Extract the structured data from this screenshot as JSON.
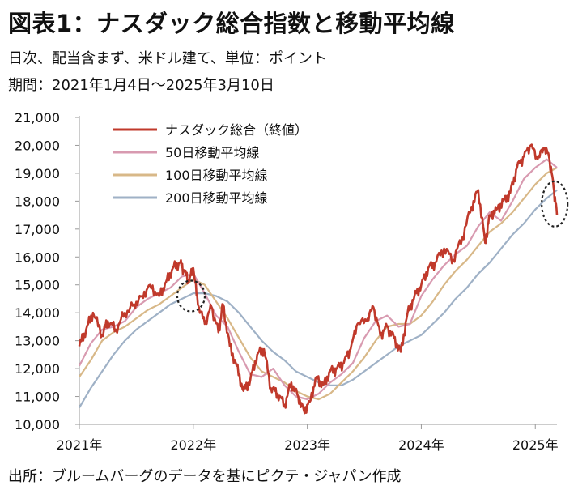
{
  "header": {
    "title": "図表1：ナスダック総合指数と移動平均線",
    "subtitle": "日次、配当含まず、米ドル建て、単位：ポイント",
    "period": "期間：2021年1月4日～2025年3月10日"
  },
  "footer": {
    "source": "出所：ブルームバーグのデータを基にピクテ・ジャパン作成"
  },
  "chart_data": {
    "type": "line",
    "title": "ナスダック総合指数と移動平均線",
    "xlabel": "",
    "ylabel": "ポイント",
    "ylim": [
      10000,
      21000
    ],
    "xlim": [
      2021.0,
      2025.19
    ],
    "y_ticks": [
      10000,
      11000,
      12000,
      13000,
      14000,
      15000,
      16000,
      17000,
      18000,
      19000,
      20000,
      21000
    ],
    "y_tick_labels": [
      "10,000",
      "11,000",
      "12,000",
      "13,000",
      "14,000",
      "15,000",
      "16,000",
      "17,000",
      "18,000",
      "19,000",
      "20,000",
      "21,000"
    ],
    "x_ticks": [
      2021,
      2022,
      2023,
      2024,
      2025
    ],
    "x_tick_labels": [
      "2021年",
      "2022年",
      "2023年",
      "2024年",
      "2025年"
    ],
    "legend_position": "top-left",
    "grid": false,
    "series": [
      {
        "name": "ナスダック総合（終値）",
        "color": "#c0392b",
        "x": [
          2021.0,
          2021.06,
          2021.12,
          2021.2,
          2021.25,
          2021.32,
          2021.4,
          2021.48,
          2021.55,
          2021.62,
          2021.7,
          2021.76,
          2021.82,
          2021.88,
          2021.92,
          2021.96,
          2022.0,
          2022.04,
          2022.1,
          2022.16,
          2022.22,
          2022.26,
          2022.32,
          2022.38,
          2022.44,
          2022.5,
          2022.56,
          2022.62,
          2022.68,
          2022.74,
          2022.8,
          2022.86,
          2022.92,
          2022.97,
          2023.02,
          2023.08,
          2023.14,
          2023.2,
          2023.26,
          2023.32,
          2023.38,
          2023.44,
          2023.52,
          2023.58,
          2023.64,
          2023.7,
          2023.76,
          2023.82,
          2023.88,
          2023.94,
          2024.0,
          2024.06,
          2024.12,
          2024.2,
          2024.28,
          2024.36,
          2024.44,
          2024.5,
          2024.56,
          2024.6,
          2024.66,
          2024.72,
          2024.78,
          2024.84,
          2024.9,
          2024.96,
          2025.02,
          2025.08,
          2025.12,
          2025.16,
          2025.19
        ],
        "values": [
          12800,
          13400,
          14000,
          13200,
          13700,
          13400,
          14000,
          14300,
          14600,
          15000,
          14600,
          15100,
          15600,
          15800,
          15500,
          15100,
          15600,
          14300,
          13600,
          14200,
          13300,
          14300,
          12800,
          12100,
          11200,
          11600,
          12500,
          12700,
          11300,
          11100,
          10700,
          11500,
          11000,
          10500,
          10800,
          11700,
          11400,
          11900,
          12000,
          12200,
          12700,
          13600,
          13700,
          14200,
          13200,
          13500,
          13100,
          12600,
          14000,
          14600,
          15000,
          15600,
          15800,
          16300,
          15900,
          16700,
          17800,
          18400,
          16500,
          17500,
          17700,
          18000,
          18300,
          19200,
          19600,
          20000,
          19500,
          19900,
          19600,
          18500,
          17500
        ]
      },
      {
        "name": "50日移動平均線",
        "color": "#d89ab0",
        "x": [
          2021.0,
          2021.1,
          2021.2,
          2021.3,
          2021.4,
          2021.5,
          2021.6,
          2021.7,
          2021.8,
          2021.9,
          2022.0,
          2022.1,
          2022.2,
          2022.3,
          2022.4,
          2022.5,
          2022.6,
          2022.7,
          2022.8,
          2022.9,
          2023.0,
          2023.1,
          2023.2,
          2023.3,
          2023.4,
          2023.5,
          2023.6,
          2023.7,
          2023.8,
          2023.9,
          2024.0,
          2024.1,
          2024.2,
          2024.3,
          2024.4,
          2024.5,
          2024.6,
          2024.7,
          2024.8,
          2024.9,
          2025.0,
          2025.1,
          2025.19
        ],
        "values": [
          12100,
          12900,
          13400,
          13500,
          13700,
          14200,
          14500,
          14700,
          14900,
          15300,
          15400,
          14700,
          13900,
          13500,
          12600,
          11800,
          11700,
          12000,
          11400,
          11000,
          10900,
          11100,
          11500,
          11800,
          12200,
          13100,
          13700,
          13900,
          13500,
          13600,
          14600,
          15200,
          15700,
          16100,
          16400,
          17100,
          17600,
          17300,
          18000,
          18800,
          19200,
          19500,
          19200
        ]
      },
      {
        "name": "100日移動平均線",
        "color": "#d8b888",
        "x": [
          2021.0,
          2021.1,
          2021.2,
          2021.3,
          2021.4,
          2021.5,
          2021.6,
          2021.7,
          2021.8,
          2021.9,
          2022.0,
          2022.1,
          2022.2,
          2022.3,
          2022.4,
          2022.5,
          2022.6,
          2022.7,
          2022.8,
          2022.9,
          2023.0,
          2023.1,
          2023.2,
          2023.3,
          2023.4,
          2023.5,
          2023.6,
          2023.7,
          2023.8,
          2023.9,
          2024.0,
          2024.1,
          2024.2,
          2024.3,
          2024.4,
          2024.5,
          2024.6,
          2024.7,
          2024.8,
          2024.9,
          2025.0,
          2025.1,
          2025.19
        ],
        "values": [
          11700,
          12300,
          13000,
          13300,
          13500,
          13800,
          14100,
          14300,
          14600,
          14900,
          15200,
          15000,
          14400,
          13800,
          13100,
          12400,
          11900,
          11700,
          11500,
          11200,
          11000,
          10900,
          11100,
          11500,
          11900,
          12400,
          13000,
          13500,
          13600,
          13600,
          13900,
          14400,
          15000,
          15500,
          15900,
          16400,
          16900,
          17200,
          17600,
          18100,
          18600,
          19000,
          19200
        ]
      },
      {
        "name": "200日移動平均線",
        "color": "#9fb1c6",
        "x": [
          2021.0,
          2021.1,
          2021.2,
          2021.3,
          2021.4,
          2021.5,
          2021.6,
          2021.7,
          2021.8,
          2021.9,
          2022.0,
          2022.1,
          2022.2,
          2022.3,
          2022.4,
          2022.5,
          2022.6,
          2022.7,
          2022.8,
          2022.9,
          2023.0,
          2023.1,
          2023.2,
          2023.3,
          2023.4,
          2023.5,
          2023.6,
          2023.7,
          2023.8,
          2023.9,
          2024.0,
          2024.1,
          2024.2,
          2024.3,
          2024.4,
          2024.5,
          2024.6,
          2024.7,
          2024.8,
          2024.9,
          2025.0,
          2025.1,
          2025.19
        ],
        "values": [
          10600,
          11300,
          11900,
          12500,
          13000,
          13400,
          13700,
          14000,
          14300,
          14500,
          14700,
          14700,
          14600,
          14400,
          14000,
          13500,
          13000,
          12600,
          12300,
          11900,
          11700,
          11500,
          11400,
          11400,
          11600,
          11900,
          12200,
          12500,
          12800,
          13000,
          13200,
          13600,
          14000,
          14500,
          14900,
          15400,
          15800,
          16300,
          16800,
          17200,
          17700,
          18100,
          18400
        ]
      }
    ],
    "annotations": [
      {
        "type": "dashed-ellipse",
        "note": "2022年初の交差",
        "x": 2021.98,
        "y": 14600
      },
      {
        "type": "dashed-ellipse",
        "note": "直近の下落",
        "x": 2025.17,
        "y": 17900
      }
    ]
  }
}
